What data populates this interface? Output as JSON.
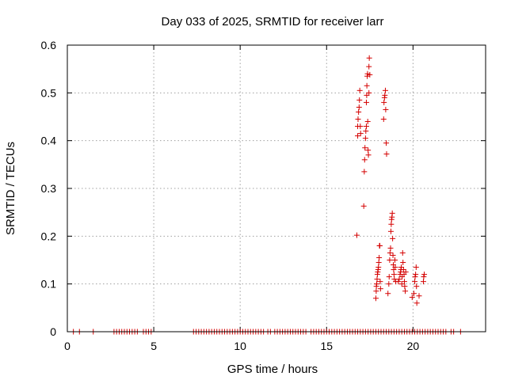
{
  "chart_data": {
    "type": "scatter",
    "title": "Day 033 of 2025, SRMTID for receiver larr",
    "xlabel": "GPS time / hours",
    "ylabel": "SRMTID / TECUs",
    "xlim": [
      0,
      24.2
    ],
    "ylim": [
      0,
      0.6
    ],
    "xticks": [
      0,
      5,
      10,
      15,
      20
    ],
    "yticks": [
      0,
      0.1,
      0.2,
      0.3,
      0.4,
      0.5,
      0.6
    ],
    "ytick_labels": [
      "0",
      "0.1",
      "0.2",
      "0.3",
      "0.4",
      "0.5",
      "0.6"
    ],
    "grid": true,
    "legend": "none",
    "marker": "+",
    "color": "#d40000",
    "series": [
      {
        "name": "larr",
        "zero_times": [
          0.35,
          0.7,
          1.5,
          2.7,
          2.85,
          3.0,
          3.15,
          3.3,
          3.45,
          3.6,
          3.75,
          3.9,
          4.05,
          4.4,
          4.55,
          4.7,
          4.85,
          7.3,
          7.45,
          7.6,
          7.75,
          7.9,
          8.05,
          8.2,
          8.35,
          8.5,
          8.65,
          8.8,
          8.95,
          9.1,
          9.25,
          9.4,
          9.55,
          9.7,
          9.85,
          10.0,
          10.15,
          10.3,
          10.45,
          10.6,
          10.75,
          10.9,
          11.05,
          11.2,
          11.35,
          11.6,
          11.75,
          12.0,
          12.15,
          12.3,
          12.45,
          12.6,
          12.75,
          12.9,
          13.05,
          13.2,
          13.35,
          13.5,
          13.65,
          13.8,
          14.1,
          14.25,
          14.4,
          14.55,
          14.7,
          14.85,
          15.0,
          15.15,
          15.3,
          15.45,
          15.6,
          15.75,
          15.9,
          16.05,
          16.2,
          16.35,
          16.5,
          16.65,
          16.8,
          16.95,
          17.1,
          17.25,
          17.4,
          17.55,
          17.7,
          17.85,
          18.0,
          18.15,
          18.3,
          18.45,
          18.6,
          18.75,
          18.9,
          19.05,
          19.2,
          19.35,
          19.5,
          19.65,
          19.8,
          19.95,
          20.1,
          20.25,
          20.4,
          20.55,
          20.7,
          20.85,
          21.0,
          21.15,
          21.3,
          21.45,
          21.6,
          21.75,
          21.9,
          22.2,
          22.35,
          22.75
        ],
        "points": [
          [
            16.75,
            0.202
          ],
          [
            16.8,
            0.41
          ],
          [
            16.8,
            0.43
          ],
          [
            16.82,
            0.445
          ],
          [
            16.85,
            0.46
          ],
          [
            16.88,
            0.47
          ],
          [
            16.9,
            0.485
          ],
          [
            16.92,
            0.505
          ],
          [
            16.95,
            0.43
          ],
          [
            16.97,
            0.415
          ],
          [
            17.15,
            0.263
          ],
          [
            17.18,
            0.335
          ],
          [
            17.2,
            0.36
          ],
          [
            17.22,
            0.385
          ],
          [
            17.25,
            0.405
          ],
          [
            17.27,
            0.42
          ],
          [
            17.3,
            0.43
          ],
          [
            17.3,
            0.48
          ],
          [
            17.32,
            0.495
          ],
          [
            17.33,
            0.515
          ],
          [
            17.35,
            0.535
          ],
          [
            17.37,
            0.54
          ],
          [
            17.38,
            0.44
          ],
          [
            17.4,
            0.38
          ],
          [
            17.42,
            0.37
          ],
          [
            17.45,
            0.5
          ],
          [
            17.45,
            0.555
          ],
          [
            17.47,
            0.573
          ],
          [
            17.5,
            0.538
          ],
          [
            17.85,
            0.07
          ],
          [
            17.87,
            0.085
          ],
          [
            17.88,
            0.095
          ],
          [
            17.9,
            0.1
          ],
          [
            17.92,
            0.11
          ],
          [
            17.94,
            0.12
          ],
          [
            17.96,
            0.125
          ],
          [
            17.98,
            0.13
          ],
          [
            18.0,
            0.135
          ],
          [
            18.02,
            0.145
          ],
          [
            18.04,
            0.155
          ],
          [
            18.06,
            0.18
          ],
          [
            18.08,
            0.18
          ],
          [
            18.1,
            0.105
          ],
          [
            18.12,
            0.09
          ],
          [
            18.3,
            0.445
          ],
          [
            18.32,
            0.48
          ],
          [
            18.35,
            0.49
          ],
          [
            18.37,
            0.495
          ],
          [
            18.4,
            0.505
          ],
          [
            18.42,
            0.465
          ],
          [
            18.45,
            0.395
          ],
          [
            18.47,
            0.372
          ],
          [
            18.55,
            0.08
          ],
          [
            18.6,
            0.1
          ],
          [
            18.62,
            0.115
          ],
          [
            18.65,
            0.15
          ],
          [
            18.67,
            0.165
          ],
          [
            18.7,
            0.175
          ],
          [
            18.72,
            0.21
          ],
          [
            18.74,
            0.225
          ],
          [
            18.76,
            0.235
          ],
          [
            18.78,
            0.24
          ],
          [
            18.8,
            0.248
          ],
          [
            18.82,
            0.195
          ],
          [
            18.84,
            0.16
          ],
          [
            18.86,
            0.14
          ],
          [
            18.88,
            0.13
          ],
          [
            18.9,
            0.12
          ],
          [
            18.92,
            0.11
          ],
          [
            18.95,
            0.15
          ],
          [
            18.97,
            0.135
          ],
          [
            19.0,
            0.105
          ],
          [
            19.15,
            0.105
          ],
          [
            19.2,
            0.11
          ],
          [
            19.25,
            0.12
          ],
          [
            19.28,
            0.125
          ],
          [
            19.3,
            0.13
          ],
          [
            19.32,
            0.135
          ],
          [
            19.35,
            0.1
          ],
          [
            19.37,
            0.115
          ],
          [
            19.4,
            0.165
          ],
          [
            19.42,
            0.145
          ],
          [
            19.45,
            0.13
          ],
          [
            19.48,
            0.12
          ],
          [
            19.5,
            0.105
          ],
          [
            19.52,
            0.095
          ],
          [
            19.55,
            0.085
          ],
          [
            19.58,
            0.125
          ],
          [
            19.95,
            0.072
          ],
          [
            20.05,
            0.08
          ],
          [
            20.1,
            0.105
          ],
          [
            20.12,
            0.115
          ],
          [
            20.15,
            0.12
          ],
          [
            20.18,
            0.135
          ],
          [
            20.2,
            0.095
          ],
          [
            20.22,
            0.06
          ],
          [
            20.35,
            0.075
          ],
          [
            20.6,
            0.105
          ],
          [
            20.62,
            0.115
          ],
          [
            20.65,
            0.12
          ]
        ]
      }
    ]
  }
}
